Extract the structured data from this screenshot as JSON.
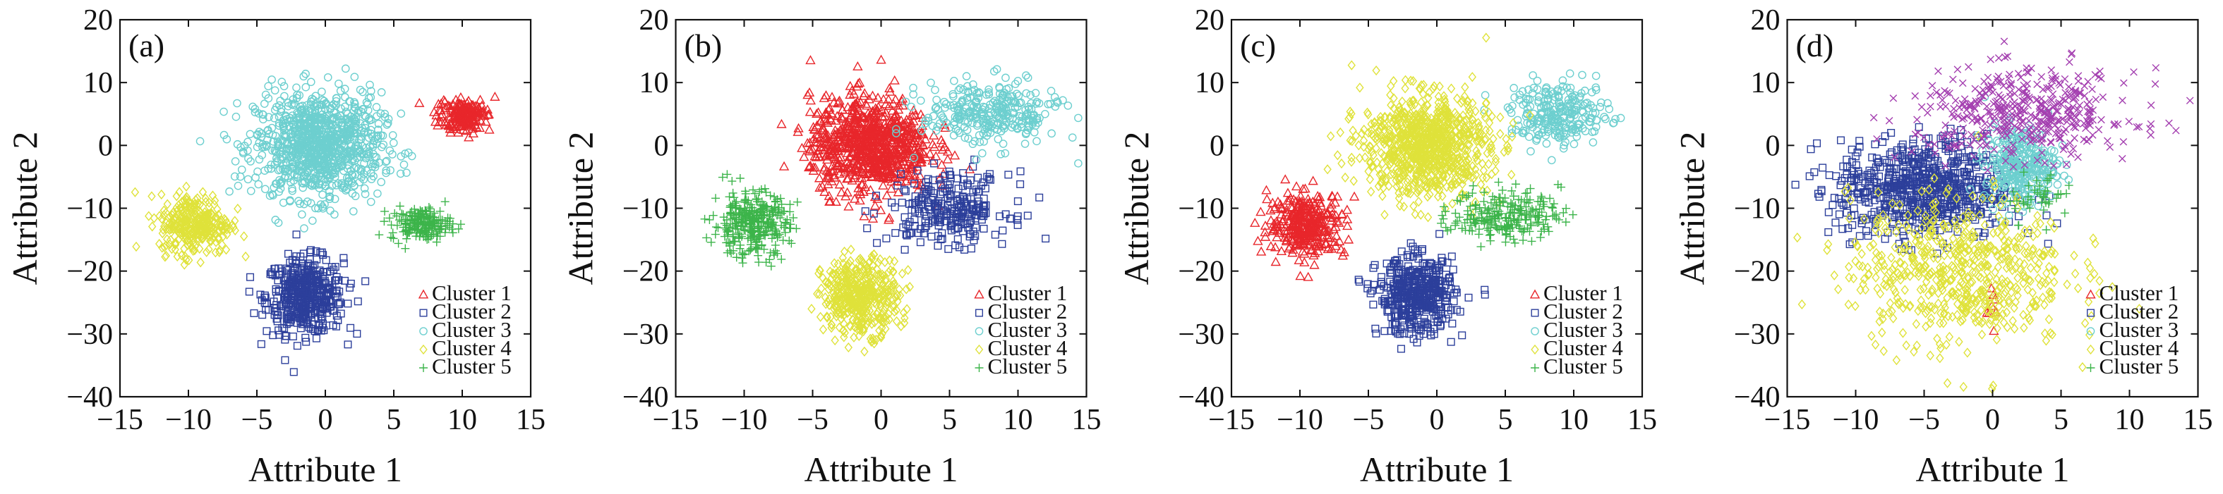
{
  "colors": {
    "red": "#e8262b",
    "blue": "#2c3f9b",
    "cyan": "#6dcfcf",
    "yellow": "#dfe23a",
    "green": "#3cb44a",
    "purple": "#a43fb0"
  },
  "chart_data": [
    {
      "type": "scatter",
      "panel_label": "(a)",
      "xlabel": "Attribute 1",
      "ylabel": "Attribute 2",
      "xlim": [
        -15,
        15
      ],
      "ylim": [
        -40,
        20
      ],
      "xticks": [
        -15,
        -10,
        -5,
        0,
        5,
        10,
        15
      ],
      "yticks": [
        -40,
        -30,
        -20,
        -10,
        0,
        10,
        20
      ],
      "legend": [
        "Cluster 1",
        "Cluster 2",
        "Cluster 3",
        "Cluster 4",
        "Cluster 5"
      ],
      "legend_position": "bottom-right",
      "series": [
        {
          "name": "Cluster 1",
          "marker": "triangle",
          "color": "red",
          "cx": 10,
          "cy": 5,
          "sx": 0.9,
          "sy": 1.5,
          "n": 180
        },
        {
          "name": "Cluster 2",
          "marker": "square",
          "color": "blue",
          "cx": -1.5,
          "cy": -24,
          "sx": 1.4,
          "sy": 3,
          "n": 450
        },
        {
          "name": "Cluster 3",
          "marker": "circle",
          "color": "cyan",
          "cx": -0.5,
          "cy": 0,
          "sx": 2.3,
          "sy": 4.2,
          "n": 950
        },
        {
          "name": "Cluster 4",
          "marker": "diamond",
          "color": "yellow",
          "cx": -9.5,
          "cy": -12.5,
          "sx": 1.3,
          "sy": 2.4,
          "n": 320
        },
        {
          "name": "Cluster 5",
          "marker": "plus",
          "color": "green",
          "cx": 7,
          "cy": -12.5,
          "sx": 1.1,
          "sy": 1.3,
          "n": 180
        }
      ]
    },
    {
      "type": "scatter",
      "panel_label": "(b)",
      "xlabel": "Attribute 1",
      "ylabel": "Attribute 2",
      "xlim": [
        -15,
        15
      ],
      "ylim": [
        -40,
        20
      ],
      "xticks": [
        -15,
        -10,
        -5,
        0,
        5,
        10,
        15
      ],
      "yticks": [
        -40,
        -30,
        -20,
        -10,
        0,
        10,
        20
      ],
      "legend": [
        "Cluster 1",
        "Cluster 2",
        "Cluster 3",
        "Cluster 4",
        "Cluster 5"
      ],
      "legend_position": "bottom-right",
      "series": [
        {
          "name": "Cluster 1",
          "marker": "triangle",
          "color": "red",
          "cx": -0.8,
          "cy": 0,
          "sx": 2.2,
          "sy": 3.8,
          "n": 820
        },
        {
          "name": "Cluster 2",
          "marker": "square",
          "color": "blue",
          "cx": 5,
          "cy": -10,
          "sx": 2.2,
          "sy": 2.8,
          "n": 260
        },
        {
          "name": "Cluster 3",
          "marker": "circle",
          "color": "cyan",
          "cx": 8,
          "cy": 5,
          "sx": 2.5,
          "sy": 2.6,
          "n": 300
        },
        {
          "name": "Cluster 4",
          "marker": "diamond",
          "color": "yellow",
          "cx": -1.5,
          "cy": -24,
          "sx": 1.4,
          "sy": 3,
          "n": 450
        },
        {
          "name": "Cluster 5",
          "marker": "plus",
          "color": "green",
          "cx": -9.5,
          "cy": -12.5,
          "sx": 1.4,
          "sy": 2.6,
          "n": 320
        }
      ]
    },
    {
      "type": "scatter",
      "panel_label": "(c)",
      "xlabel": "Attribute 1",
      "ylabel": "Attribute 2",
      "xlim": [
        -15,
        15
      ],
      "ylim": [
        -40,
        20
      ],
      "xticks": [
        -15,
        -10,
        -5,
        0,
        5,
        10,
        15
      ],
      "yticks": [
        -40,
        -30,
        -20,
        -10,
        0,
        10,
        20
      ],
      "legend": [
        "Cluster 1",
        "Cluster 2",
        "Cluster 3",
        "Cluster 4",
        "Cluster 5"
      ],
      "legend_position": "bottom-right",
      "series": [
        {
          "name": "Cluster 1",
          "marker": "triangle",
          "color": "red",
          "cx": -9.5,
          "cy": -12.5,
          "sx": 1.4,
          "sy": 2.5,
          "n": 320
        },
        {
          "name": "Cluster 2",
          "marker": "square",
          "color": "blue",
          "cx": -1.5,
          "cy": -24,
          "sx": 1.4,
          "sy": 3,
          "n": 450
        },
        {
          "name": "Cluster 3",
          "marker": "circle",
          "color": "cyan",
          "cx": 9,
          "cy": 5,
          "sx": 1.8,
          "sy": 2.5,
          "n": 240
        },
        {
          "name": "Cluster 4",
          "marker": "diamond",
          "color": "yellow",
          "cx": -0.8,
          "cy": 0,
          "sx": 2.3,
          "sy": 4,
          "n": 900
        },
        {
          "name": "Cluster 5",
          "marker": "plus",
          "color": "green",
          "cx": 5,
          "cy": -11,
          "sx": 2,
          "sy": 2,
          "n": 230
        }
      ]
    },
    {
      "type": "scatter",
      "panel_label": "(d)",
      "xlabel": "Attribute 1",
      "ylabel": "Attribute 2",
      "xlim": [
        -15,
        15
      ],
      "ylim": [
        -40,
        20
      ],
      "xticks": [
        -15,
        -10,
        -5,
        0,
        5,
        10,
        15
      ],
      "yticks": [
        -40,
        -30,
        -20,
        -10,
        0,
        10,
        20
      ],
      "legend": [
        "Cluster 1",
        "Cluster 2",
        "Cluster 3",
        "Cluster 4",
        "Cluster 5"
      ],
      "legend_position": "bottom-right",
      "series": [
        {
          "name": "Cluster 1",
          "marker": "triangle",
          "color": "red",
          "cx": 0,
          "cy": -25,
          "sx": 0.15,
          "sy": 2.5,
          "n": 8
        },
        {
          "name": "Cluster 2",
          "marker": "square",
          "color": "blue",
          "cx": -5,
          "cy": -7,
          "sx": 3.2,
          "sy": 4,
          "n": 700
        },
        {
          "name": "Cluster 3",
          "marker": "circle",
          "color": "cyan",
          "cx": 2,
          "cy": -3,
          "sx": 1.3,
          "sy": 3,
          "n": 300
        },
        {
          "name": "Cluster 4",
          "marker": "diamond",
          "color": "yellow",
          "cx": -2.5,
          "cy": -20,
          "sx": 4,
          "sy": 6,
          "n": 600
        },
        {
          "name": "Cluster 5",
          "marker": "plus",
          "color": "green",
          "cx": 3.5,
          "cy": -8,
          "sx": 1.2,
          "sy": 2,
          "n": 40
        },
        {
          "marker": "cross",
          "color": "purple",
          "cx": 2.5,
          "cy": 5,
          "sx": 4,
          "sy": 3.5,
          "n": 420
        }
      ]
    }
  ]
}
